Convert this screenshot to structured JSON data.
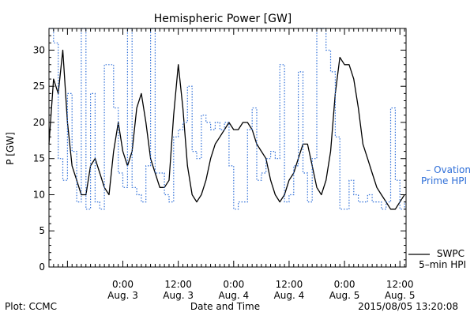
{
  "chart_data": {
    "type": "line",
    "title": "Hemispheric Power [GW]",
    "ylabel": "P [GW]",
    "xlabel": "Date and Time",
    "ylim": [
      0,
      33
    ],
    "xlim": [
      "2015-08-02 08:00",
      "2015-08-05 13:20"
    ],
    "y_ticks": [
      0,
      5,
      10,
      15,
      20,
      25,
      30
    ],
    "x_ticks": [
      {
        "time": "2015-08-03 00:00",
        "line1": "0:00",
        "line2": "Aug. 3"
      },
      {
        "time": "2015-08-03 12:00",
        "line1": "12:00",
        "line2": "Aug. 3"
      },
      {
        "time": "2015-08-04 00:00",
        "line1": "0:00",
        "line2": "Aug. 4"
      },
      {
        "time": "2015-08-04 12:00",
        "line1": "12:00",
        "line2": "Aug. 4"
      },
      {
        "time": "2015-08-05 00:00",
        "line1": "0:00",
        "line2": "Aug. 5"
      },
      {
        "time": "2015-08-05 12:00",
        "line1": "12:00",
        "line2": "Aug. 5"
      }
    ],
    "series": [
      {
        "name": "SWPC 5-min HPI",
        "legend_lines": [
          "SWPC",
          "5–min HPI"
        ],
        "color": "#000000",
        "style": "solid",
        "x": [
          "2015-08-02 08:00",
          "2015-08-02 09:00",
          "2015-08-02 10:00",
          "2015-08-02 11:00",
          "2015-08-02 12:00",
          "2015-08-02 13:00",
          "2015-08-02 14:00",
          "2015-08-02 15:00",
          "2015-08-02 16:00",
          "2015-08-02 17:00",
          "2015-08-02 18:00",
          "2015-08-02 19:00",
          "2015-08-02 20:00",
          "2015-08-02 21:00",
          "2015-08-02 22:00",
          "2015-08-02 23:00",
          "2015-08-03 00:00",
          "2015-08-03 01:00",
          "2015-08-03 02:00",
          "2015-08-03 03:00",
          "2015-08-03 04:00",
          "2015-08-03 05:00",
          "2015-08-03 06:00",
          "2015-08-03 07:00",
          "2015-08-03 08:00",
          "2015-08-03 09:00",
          "2015-08-03 10:00",
          "2015-08-03 11:00",
          "2015-08-03 12:00",
          "2015-08-03 13:00",
          "2015-08-03 14:00",
          "2015-08-03 15:00",
          "2015-08-03 16:00",
          "2015-08-03 17:00",
          "2015-08-03 18:00",
          "2015-08-03 19:00",
          "2015-08-03 20:00",
          "2015-08-03 21:00",
          "2015-08-03 22:00",
          "2015-08-03 23:00",
          "2015-08-04 00:00",
          "2015-08-04 01:00",
          "2015-08-04 02:00",
          "2015-08-04 03:00",
          "2015-08-04 04:00",
          "2015-08-04 05:00",
          "2015-08-04 06:00",
          "2015-08-04 07:00",
          "2015-08-04 08:00",
          "2015-08-04 09:00",
          "2015-08-04 10:00",
          "2015-08-04 11:00",
          "2015-08-04 12:00",
          "2015-08-04 13:00",
          "2015-08-04 14:00",
          "2015-08-04 15:00",
          "2015-08-04 16:00",
          "2015-08-04 17:00",
          "2015-08-04 18:00",
          "2015-08-04 19:00",
          "2015-08-04 20:00",
          "2015-08-04 21:00",
          "2015-08-04 22:00",
          "2015-08-04 23:00",
          "2015-08-05 00:00",
          "2015-08-05 01:00",
          "2015-08-05 02:00",
          "2015-08-05 03:00",
          "2015-08-05 04:00",
          "2015-08-05 05:00",
          "2015-08-05 06:00",
          "2015-08-05 07:00",
          "2015-08-05 08:00",
          "2015-08-05 09:00",
          "2015-08-05 10:00",
          "2015-08-05 11:00",
          "2015-08-05 12:00",
          "2015-08-05 13:00"
        ],
        "y": [
          17,
          26,
          24,
          30,
          20,
          14,
          12,
          10,
          10,
          14,
          15,
          13,
          11,
          10,
          16,
          20,
          16,
          14,
          16,
          22,
          24,
          20,
          15,
          13,
          11,
          11,
          12,
          21,
          28,
          22,
          14,
          10,
          9,
          10,
          12,
          15,
          17,
          18,
          19,
          20,
          19,
          19,
          20,
          20,
          19,
          17,
          16,
          15,
          12,
          10,
          9,
          10,
          12,
          13,
          15,
          17,
          17,
          14,
          11,
          10,
          12,
          16,
          24,
          29,
          28,
          28,
          26,
          22,
          17,
          15,
          13,
          11,
          10,
          9,
          8,
          8,
          9,
          10
        ]
      },
      {
        "name": "Ovation Prime HPI",
        "legend_lines": [
          "– Ovation",
          "Prime HPI"
        ],
        "color": "#2f6fd8",
        "style": "dotted-step",
        "x": [
          "2015-08-02 08:00",
          "2015-08-02 09:00",
          "2015-08-02 10:00",
          "2015-08-02 11:00",
          "2015-08-02 12:00",
          "2015-08-02 13:00",
          "2015-08-02 14:00",
          "2015-08-02 15:00",
          "2015-08-02 16:00",
          "2015-08-02 17:00",
          "2015-08-02 18:00",
          "2015-08-02 19:00",
          "2015-08-02 20:00",
          "2015-08-02 21:00",
          "2015-08-02 22:00",
          "2015-08-02 23:00",
          "2015-08-03 00:00",
          "2015-08-03 01:00",
          "2015-08-03 02:00",
          "2015-08-03 03:00",
          "2015-08-03 04:00",
          "2015-08-03 05:00",
          "2015-08-03 06:00",
          "2015-08-03 07:00",
          "2015-08-03 08:00",
          "2015-08-03 09:00",
          "2015-08-03 10:00",
          "2015-08-03 11:00",
          "2015-08-03 12:00",
          "2015-08-03 13:00",
          "2015-08-03 14:00",
          "2015-08-03 15:00",
          "2015-08-03 16:00",
          "2015-08-03 17:00",
          "2015-08-03 18:00",
          "2015-08-03 19:00",
          "2015-08-03 20:00",
          "2015-08-03 21:00",
          "2015-08-03 22:00",
          "2015-08-03 23:00",
          "2015-08-04 00:00",
          "2015-08-04 01:00",
          "2015-08-04 02:00",
          "2015-08-04 03:00",
          "2015-08-04 04:00",
          "2015-08-04 05:00",
          "2015-08-04 06:00",
          "2015-08-04 07:00",
          "2015-08-04 08:00",
          "2015-08-04 09:00",
          "2015-08-04 10:00",
          "2015-08-04 11:00",
          "2015-08-04 12:00",
          "2015-08-04 13:00",
          "2015-08-04 14:00",
          "2015-08-04 15:00",
          "2015-08-04 16:00",
          "2015-08-04 17:00",
          "2015-08-04 18:00",
          "2015-08-04 19:00",
          "2015-08-04 20:00",
          "2015-08-04 21:00",
          "2015-08-04 22:00",
          "2015-08-04 23:00",
          "2015-08-05 00:00",
          "2015-08-05 01:00",
          "2015-08-05 02:00",
          "2015-08-05 03:00",
          "2015-08-05 04:00",
          "2015-08-05 05:00",
          "2015-08-05 06:00",
          "2015-08-05 07:00",
          "2015-08-05 08:00",
          "2015-08-05 09:00",
          "2015-08-05 10:00",
          "2015-08-05 11:00",
          "2015-08-05 12:00",
          "2015-08-05 13:00"
        ],
        "y": [
          33,
          31,
          15,
          12,
          24,
          16,
          9,
          33,
          8,
          24,
          9,
          8,
          28,
          28,
          22,
          13,
          11,
          33,
          11,
          10,
          9,
          14,
          33,
          13,
          13,
          10,
          9,
          18,
          19,
          20,
          25,
          16,
          15,
          21,
          20,
          19,
          20,
          19,
          20,
          14,
          8,
          9,
          9,
          19,
          22,
          12,
          13,
          15,
          16,
          15,
          28,
          9,
          10,
          14,
          27,
          13,
          9,
          15,
          33,
          33,
          30,
          27,
          18,
          8,
          8,
          12,
          10,
          9,
          9,
          10,
          9,
          9,
          8,
          9,
          22,
          12,
          8,
          9
        ]
      }
    ]
  },
  "footer": {
    "plot_credit": "Plot: CCMC",
    "timestamp": "2015/08/05 13:20:08"
  }
}
